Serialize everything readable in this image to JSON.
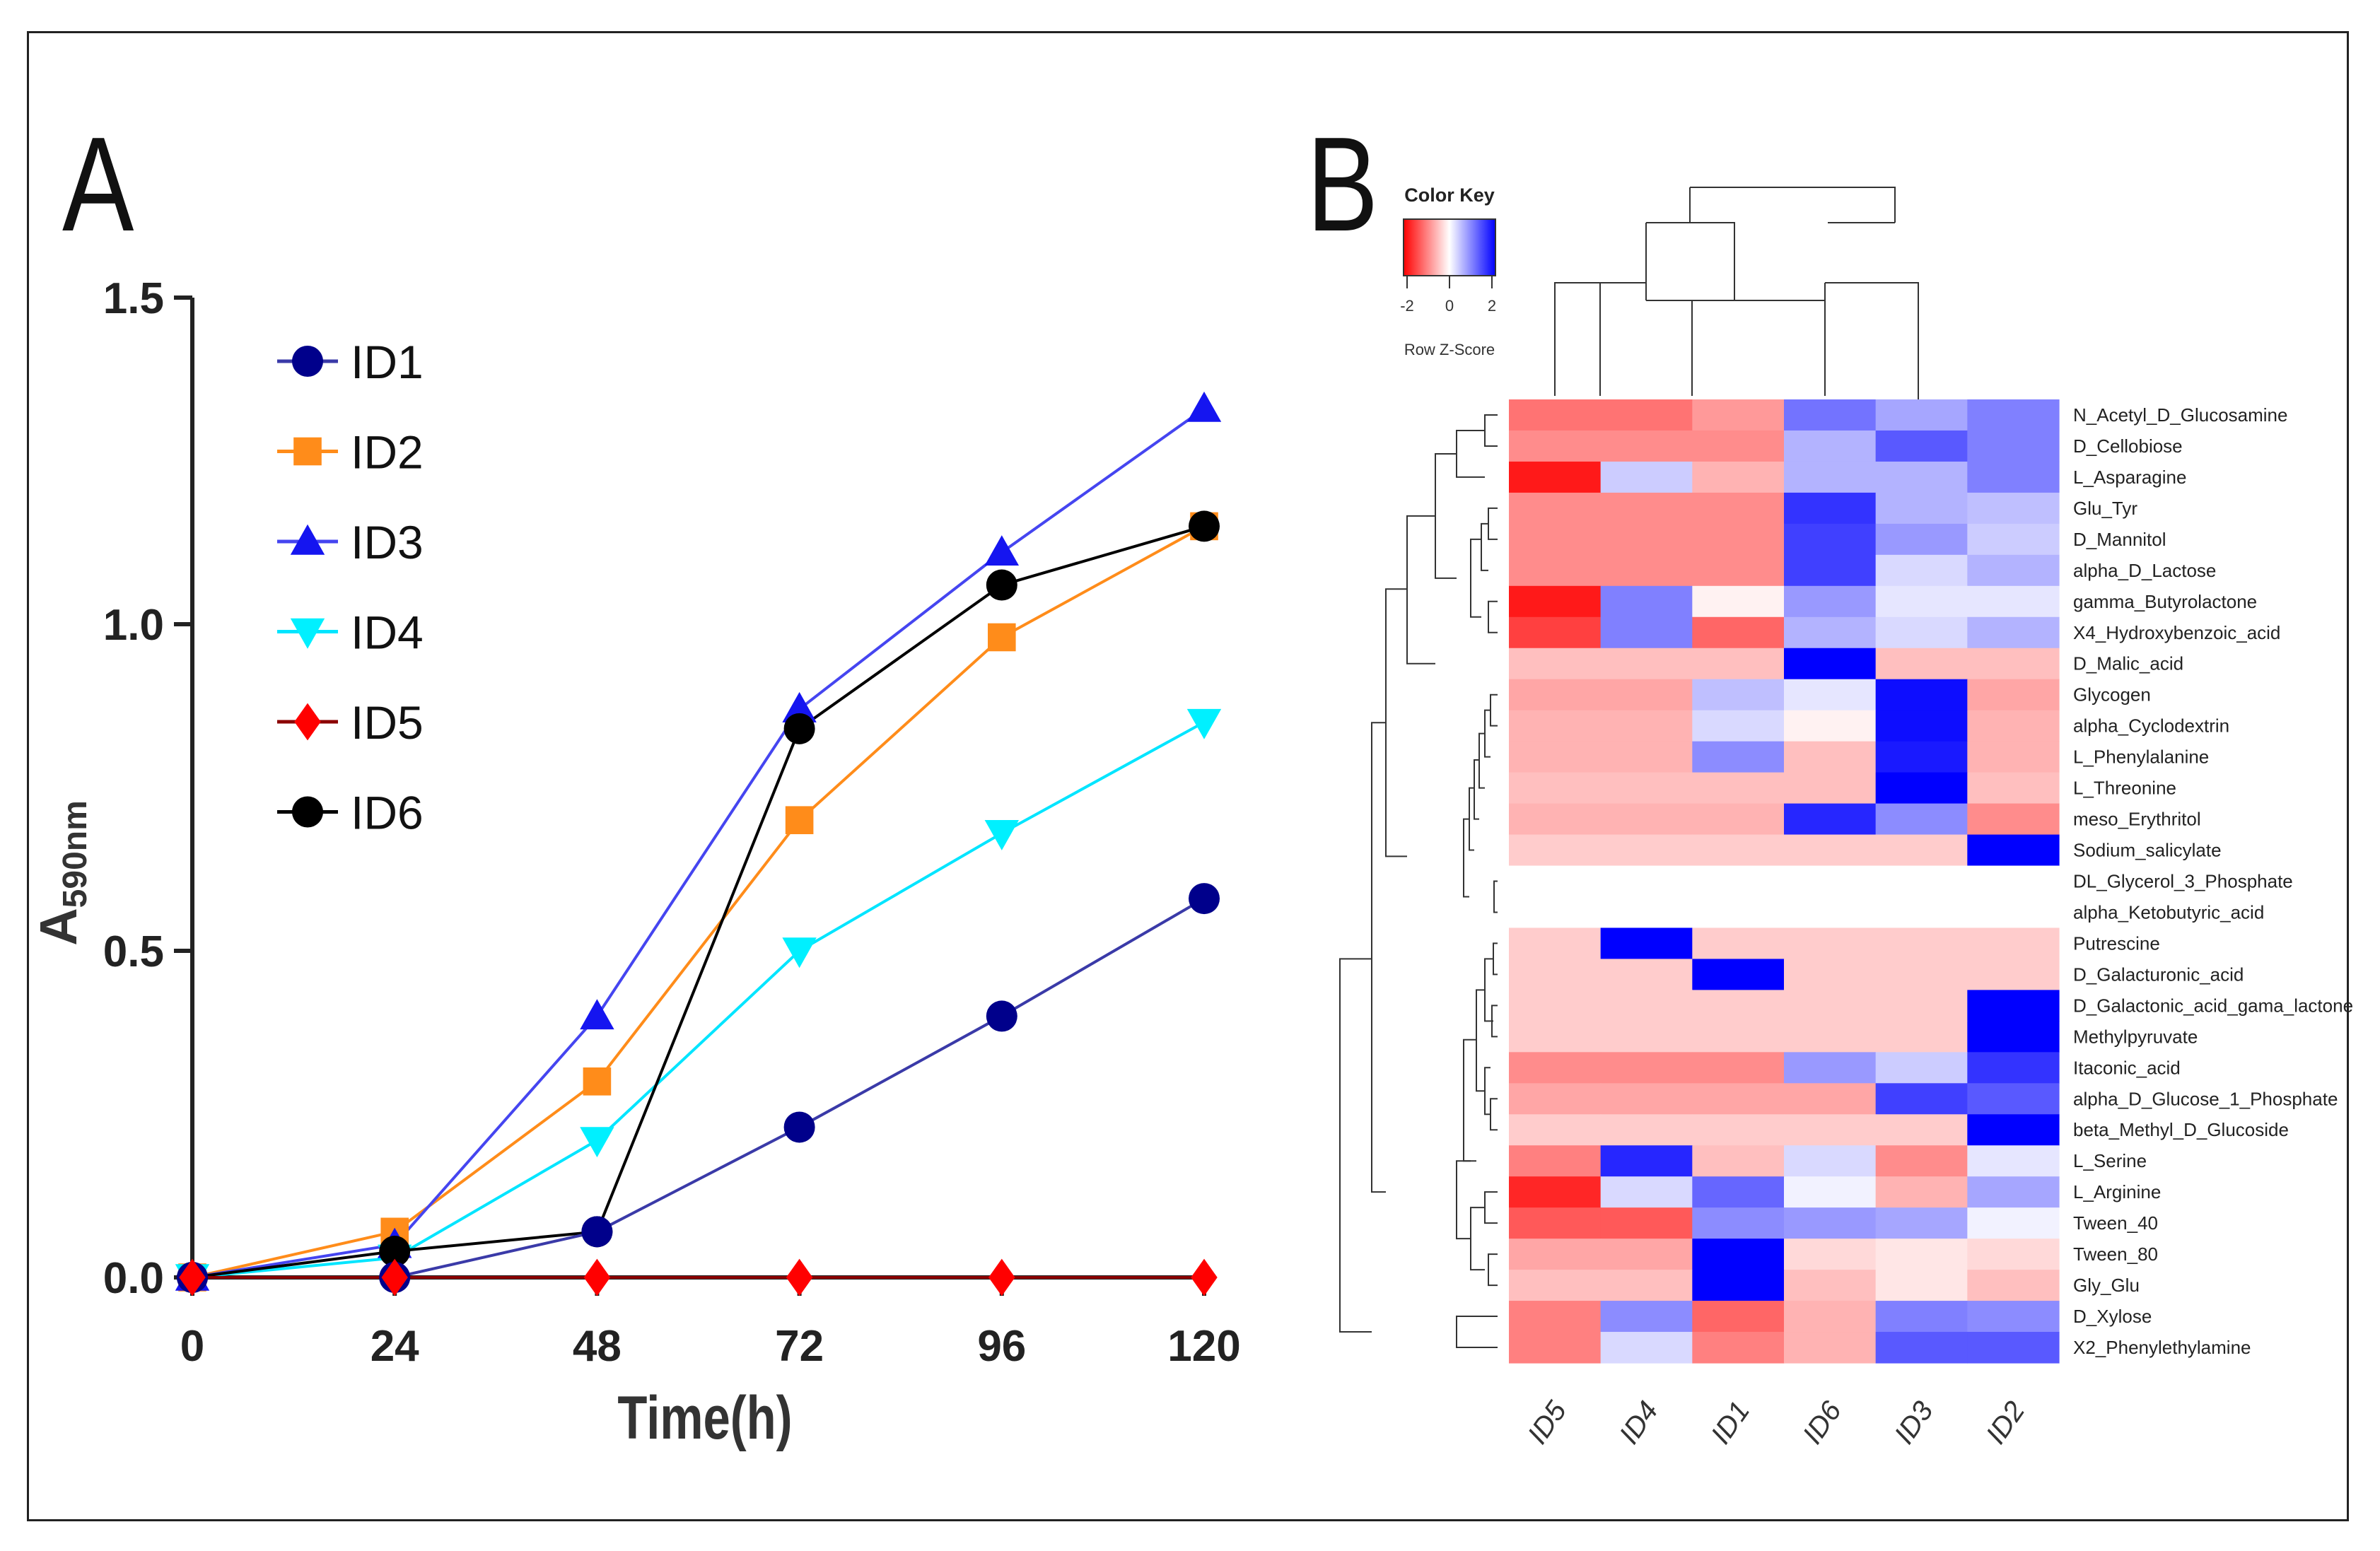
{
  "panels": {
    "a": "A",
    "b": "B"
  },
  "chart_data": [
    {
      "type": "line",
      "panel": "A",
      "title": "",
      "xlabel": "Time(h)",
      "ylabel_main": "A",
      "ylabel_sub": "590nm",
      "x": [
        0,
        24,
        48,
        72,
        96,
        120
      ],
      "x_tick_labels": [
        "0",
        "24",
        "48",
        "72",
        "96",
        "120"
      ],
      "xlim": [
        0,
        120
      ],
      "ylim": [
        0,
        1.5
      ],
      "y_ticks": [
        0.0,
        0.5,
        1.0,
        1.5
      ],
      "y_tick_labels": [
        "0.0",
        "0.5",
        "1.0",
        "1.5"
      ],
      "legend_position": "top-left",
      "series": [
        {
          "name": "ID1",
          "color": "#00008b",
          "line_color": "#3a3aa8",
          "marker": "circle",
          "values": [
            0.0,
            0.0,
            0.07,
            0.23,
            0.4,
            0.58
          ]
        },
        {
          "name": "ID2",
          "color": "#ff8c1a",
          "line_color": "#ff8c1a",
          "marker": "square",
          "values": [
            0.0,
            0.07,
            0.3,
            0.7,
            0.98,
            1.15
          ]
        },
        {
          "name": "ID3",
          "color": "#1515f0",
          "line_color": "#4545f0",
          "marker": "triangle-up",
          "values": [
            0.0,
            0.05,
            0.4,
            0.87,
            1.11,
            1.33
          ]
        },
        {
          "name": "ID4",
          "color": "#00f0ff",
          "line_color": "#00e5ff",
          "marker": "triangle-down",
          "values": [
            0.0,
            0.03,
            0.21,
            0.5,
            0.68,
            0.85
          ]
        },
        {
          "name": "ID5",
          "color": "#ff0000",
          "line_color": "#8b0000",
          "marker": "diamond",
          "values": [
            0.0,
            0.0,
            0.0,
            0.0,
            0.0,
            0.0
          ]
        },
        {
          "name": "ID6",
          "color": "#000000",
          "line_color": "#000000",
          "marker": "circle",
          "values": [
            0.0,
            0.04,
            0.07,
            0.84,
            1.06,
            1.15
          ]
        }
      ]
    },
    {
      "type": "heatmap",
      "panel": "B",
      "color_key_title": "Color Key",
      "color_key_label": "Row Z-Score",
      "color_scale": {
        "min": -2,
        "max": 2,
        "low": "#ff0000",
        "mid": "#ffffff",
        "high": "#0000ff"
      },
      "color_key_ticks": [
        "-2",
        "0",
        "2"
      ],
      "columns": [
        "ID5",
        "ID4",
        "ID1",
        "ID6",
        "ID3",
        "ID2"
      ],
      "rows": [
        "N_Acetyl_D_Glucosamine",
        "D_Cellobiose",
        "L_Asparagine",
        "Glu_Tyr",
        "D_Mannitol",
        "alpha_D_Lactose",
        "gamma_Butyrolactone",
        "X4_Hydroxybenzoic_acid",
        "D_Malic_acid",
        "Glycogen",
        "alpha_Cyclodextrin",
        "L_Phenylalanine",
        "L_Threonine",
        "meso_Erythritol",
        "Sodium_salicylate",
        "DL_Glycerol_3_Phosphate",
        "alpha_Ketobutyric_acid",
        "Putrescine",
        "D_Galacturonic_acid",
        "D_Galactonic_acid_gama_lactone",
        "Methylpyruvate",
        "Itaconic_acid",
        "alpha_D_Glucose_1_Phosphate",
        "beta_Methyl_D_Glucoside",
        "L_Serine",
        "L_Arginine",
        "Tween_40",
        "Tween_80",
        "Gly_Glu",
        "D_Xylose",
        "X2_Phenylethylamine"
      ],
      "values": [
        [
          -1.1,
          -1.1,
          -0.8,
          1.1,
          0.7,
          1.0
        ],
        [
          -0.9,
          -0.9,
          -0.9,
          0.6,
          1.3,
          1.0
        ],
        [
          -1.8,
          0.4,
          -0.6,
          0.6,
          0.6,
          1.0
        ],
        [
          -0.9,
          -0.9,
          -0.9,
          1.6,
          0.6,
          0.5
        ],
        [
          -0.9,
          -0.9,
          -0.9,
          1.5,
          0.8,
          0.4
        ],
        [
          -0.9,
          -0.9,
          -0.9,
          1.5,
          0.3,
          0.6
        ],
        [
          -1.8,
          1.0,
          -0.1,
          0.8,
          0.2,
          0.2
        ],
        [
          -1.5,
          1.0,
          -1.2,
          0.6,
          0.3,
          0.6
        ],
        [
          -0.5,
          -0.5,
          -0.5,
          2.0,
          -0.5,
          -0.5
        ],
        [
          -0.7,
          -0.7,
          0.5,
          0.2,
          1.9,
          -0.7
        ],
        [
          -0.6,
          -0.6,
          0.3,
          -0.1,
          1.9,
          -0.6
        ],
        [
          -0.6,
          -0.6,
          0.9,
          -0.5,
          1.8,
          -0.6
        ],
        [
          -0.5,
          -0.5,
          -0.5,
          -0.5,
          2.0,
          -0.5
        ],
        [
          -0.6,
          -0.6,
          -0.6,
          1.7,
          0.9,
          -0.9
        ],
        [
          -0.4,
          -0.4,
          -0.4,
          -0.4,
          -0.4,
          2.0
        ],
        [
          0.0,
          0.0,
          0.0,
          0.0,
          0.0,
          0.0
        ],
        [
          0.0,
          0.0,
          0.0,
          0.0,
          0.0,
          0.0
        ],
        [
          -0.4,
          2.0,
          -0.4,
          -0.4,
          -0.4,
          -0.4
        ],
        [
          -0.4,
          -0.4,
          2.0,
          -0.4,
          -0.4,
          -0.4
        ],
        [
          -0.4,
          -0.4,
          -0.4,
          -0.4,
          -0.4,
          2.0
        ],
        [
          -0.4,
          -0.4,
          -0.4,
          -0.4,
          -0.4,
          2.0
        ],
        [
          -0.9,
          -0.9,
          -0.9,
          0.8,
          0.4,
          1.6
        ],
        [
          -0.7,
          -0.7,
          -0.7,
          -0.7,
          1.5,
          1.3
        ],
        [
          -0.4,
          -0.4,
          -0.4,
          -0.4,
          -0.4,
          2.0
        ],
        [
          -1.0,
          1.7,
          -0.5,
          0.3,
          -0.9,
          0.2
        ],
        [
          -1.7,
          0.3,
          1.2,
          0.1,
          -0.6,
          0.7
        ],
        [
          -1.3,
          -1.3,
          0.9,
          0.8,
          0.7,
          0.1
        ],
        [
          -0.7,
          -0.7,
          2.0,
          -0.3,
          -0.2,
          -0.3
        ],
        [
          -0.5,
          -0.5,
          2.0,
          -0.5,
          -0.2,
          -0.5
        ],
        [
          -1.0,
          0.9,
          -1.2,
          -0.6,
          1.0,
          0.9
        ],
        [
          -1.0,
          0.3,
          -1.0,
          -0.6,
          1.3,
          1.3
        ]
      ]
    }
  ]
}
